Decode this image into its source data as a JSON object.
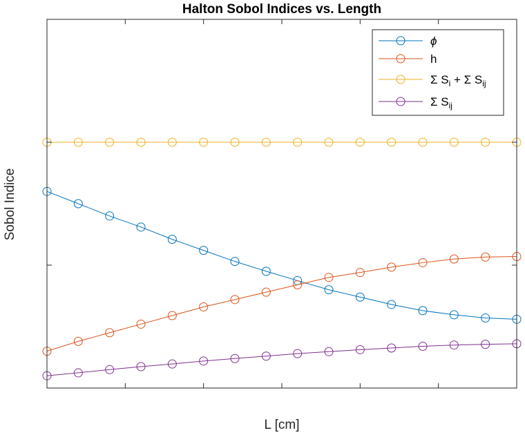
{
  "chart_data": {
    "type": "line",
    "title": "Halton Sobol Indices vs. Length",
    "xlabel": "L [cm]",
    "ylabel": "Sobol Indice",
    "xlim": [
      10,
      70
    ],
    "ylim": [
      0,
      1.5
    ],
    "x_ticks": [
      "10",
      "20",
      "30",
      "40",
      "50",
      "60",
      "70"
    ],
    "y_ticks": [
      "0",
      "0.5",
      "1",
      "1.5"
    ],
    "grid": false,
    "legend_position": "top-right",
    "marker": "circle",
    "x": [
      10,
      14,
      18,
      22,
      26,
      30,
      34,
      38,
      42,
      46,
      50,
      54,
      58,
      62,
      66,
      70
    ],
    "series": [
      {
        "name": "ϕ",
        "legend_main": "ϕ",
        "color": "#0072BD",
        "values": [
          0.8,
          0.75,
          0.7,
          0.655,
          0.605,
          0.56,
          0.515,
          0.475,
          0.437,
          0.4,
          0.37,
          0.34,
          0.315,
          0.298,
          0.285,
          0.28
        ]
      },
      {
        "name": "h",
        "legend_main": "h",
        "color": "#D95319",
        "values": [
          0.15,
          0.19,
          0.225,
          0.26,
          0.295,
          0.33,
          0.36,
          0.39,
          0.42,
          0.45,
          0.47,
          0.492,
          0.51,
          0.525,
          0.533,
          0.535
        ]
      },
      {
        "name": "Σ Si + Σ Sij",
        "legend_parts": [
          [
            "Σ S",
            ""
          ],
          [
            "i",
            "sub"
          ],
          [
            " + Σ S",
            ""
          ],
          [
            "ij",
            "sub"
          ]
        ],
        "color": "#EDB120",
        "values": [
          1.0,
          1.0,
          1.0,
          1.0,
          1.0,
          1.0,
          1.0,
          1.0,
          1.0,
          1.0,
          1.0,
          1.0,
          1.0,
          1.0,
          1.0,
          1.0
        ]
      },
      {
        "name": "Σ Sij",
        "legend_parts": [
          [
            "Σ S",
            ""
          ],
          [
            "ij",
            "sub"
          ]
        ],
        "color": "#7E2F8E",
        "values": [
          0.05,
          0.062,
          0.075,
          0.087,
          0.098,
          0.11,
          0.12,
          0.13,
          0.14,
          0.148,
          0.156,
          0.163,
          0.17,
          0.175,
          0.178,
          0.18
        ]
      }
    ]
  }
}
